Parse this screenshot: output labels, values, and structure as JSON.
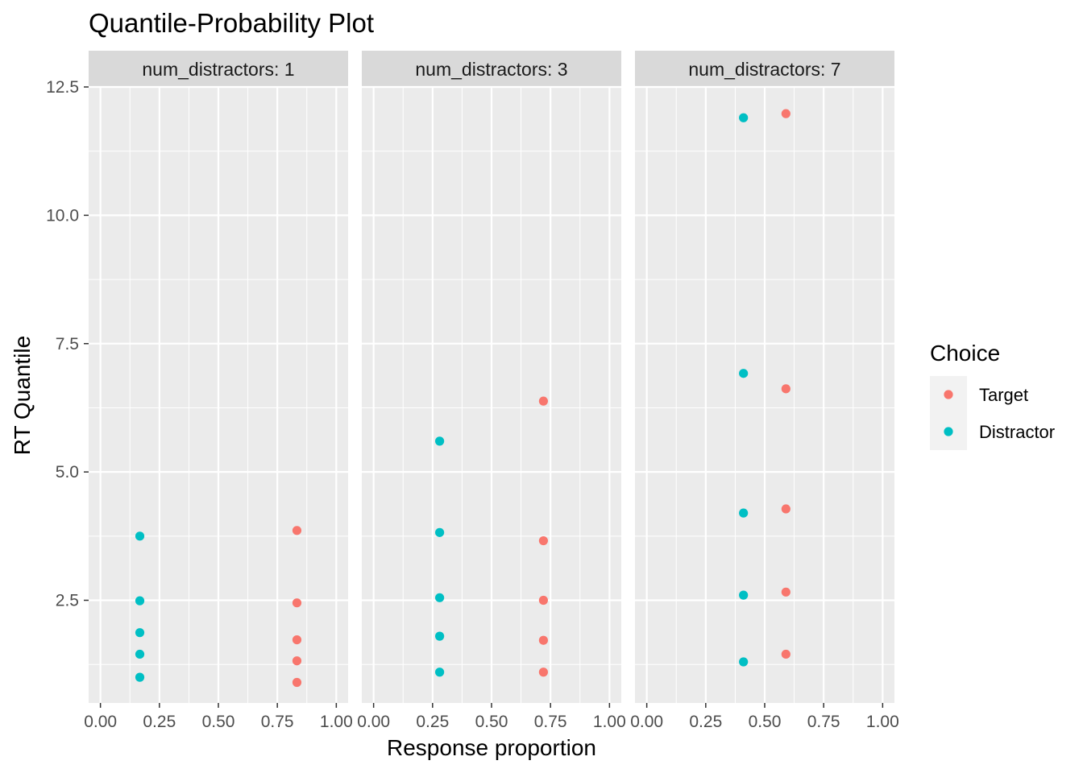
{
  "chart_data": {
    "type": "scatter",
    "title": "Quantile-Probability Plot",
    "xlabel": "Response proportion",
    "ylabel": "RT Quantile",
    "xlim": [
      -0.05,
      1.05
    ],
    "ylim": [
      0.5,
      12.5
    ],
    "x_ticks": [
      "0.00",
      "0.25",
      "0.50",
      "0.75",
      "1.00"
    ],
    "y_ticks": [
      "2.5",
      "5.0",
      "7.5",
      "10.0",
      "12.5"
    ],
    "grid": true,
    "legend": {
      "title": "Choice",
      "placement": "right",
      "entries": [
        "Target",
        "Distractor"
      ]
    },
    "colors": {
      "Target": "#F8766D",
      "Distractor": "#00BFC4"
    },
    "panels": [
      {
        "label": "num_distractors: 1",
        "series": [
          {
            "name": "Target",
            "x": [
              0.833,
              0.833,
              0.833,
              0.833,
              0.833
            ],
            "y": [
              0.9,
              1.32,
              1.73,
              2.45,
              3.86
            ]
          },
          {
            "name": "Distractor",
            "x": [
              0.167,
              0.167,
              0.167,
              0.167,
              0.167
            ],
            "y": [
              1.0,
              1.45,
              1.87,
              2.49,
              3.75
            ]
          }
        ]
      },
      {
        "label": "num_distractors: 3",
        "series": [
          {
            "name": "Target",
            "x": [
              0.72,
              0.72,
              0.72,
              0.72,
              0.72
            ],
            "y": [
              1.1,
              1.72,
              2.5,
              3.66,
              6.38
            ]
          },
          {
            "name": "Distractor",
            "x": [
              0.28,
              0.28,
              0.28,
              0.28,
              0.28
            ],
            "y": [
              1.1,
              1.8,
              2.55,
              3.82,
              5.6
            ]
          }
        ]
      },
      {
        "label": "num_distractors: 7",
        "series": [
          {
            "name": "Target",
            "x": [
              0.59,
              0.59,
              0.59,
              0.59,
              0.59
            ],
            "y": [
              1.45,
              2.66,
              4.28,
              6.62,
              11.98
            ]
          },
          {
            "name": "Distractor",
            "x": [
              0.41,
              0.41,
              0.41,
              0.41,
              0.41
            ],
            "y": [
              1.3,
              2.6,
              4.2,
              6.92,
              11.9
            ]
          }
        ]
      }
    ]
  }
}
